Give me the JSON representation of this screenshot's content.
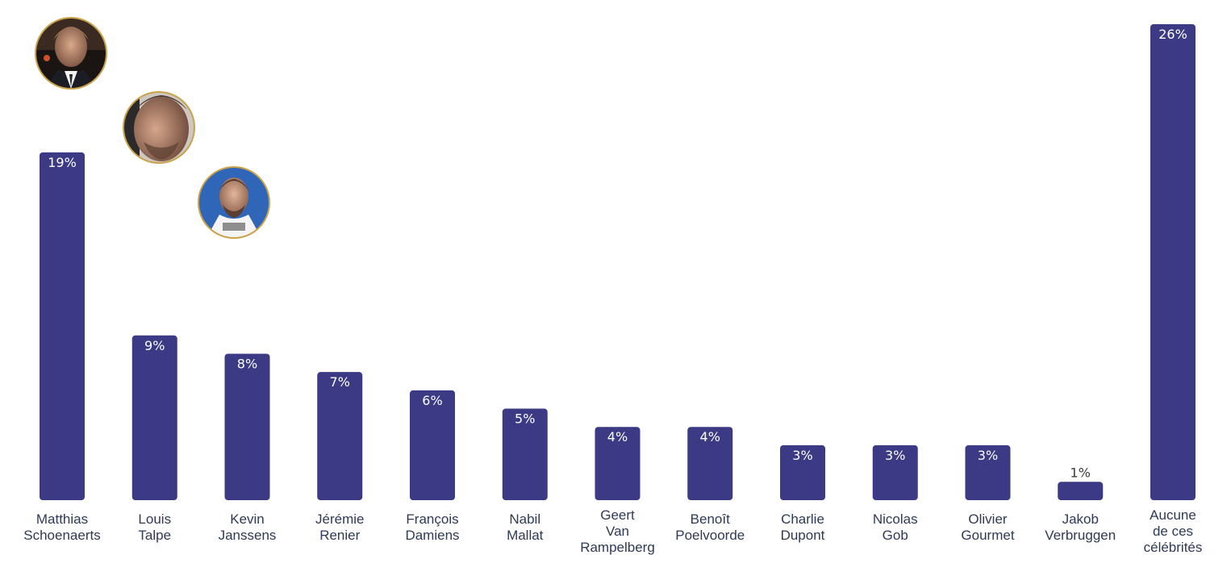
{
  "chart_data": {
    "type": "bar",
    "title": "",
    "xlabel": "",
    "ylabel": "",
    "ylim": [
      0,
      26
    ],
    "grid": false,
    "bar_color": "#3c3a85",
    "categories": [
      [
        "Matthias",
        "Schoenaerts"
      ],
      [
        "Louis",
        "Talpe"
      ],
      [
        "Kevin",
        "Janssens"
      ],
      [
        "Jérémie",
        "Renier"
      ],
      [
        "François",
        "Damiens"
      ],
      [
        "Nabil",
        "Mallat"
      ],
      [
        "Geert",
        "Van",
        "Rampelberg"
      ],
      [
        "Benoît",
        "Poelvoorde"
      ],
      [
        "Charlie",
        "Dupont"
      ],
      [
        "Nicolas",
        "Gob"
      ],
      [
        "Olivier",
        "Gourmet"
      ],
      [
        "Jakob",
        "Verbruggen"
      ],
      [
        "Aucune",
        "de ces",
        "célébrités"
      ]
    ],
    "values": [
      19,
      9,
      8,
      7,
      6,
      5,
      4,
      4,
      3,
      3,
      3,
      1,
      26
    ],
    "value_labels": [
      "19%",
      "9%",
      "8%",
      "7%",
      "6%",
      "5%",
      "4%",
      "4%",
      "3%",
      "3%",
      "3%",
      "1%",
      "26%"
    ],
    "photos": [
      {
        "person": "Matthias Schoenaerts",
        "icon": "portrait-photo"
      },
      {
        "person": "Louis Talpe",
        "icon": "portrait-photo"
      },
      {
        "person": "Kevin Janssens",
        "icon": "portrait-photo"
      }
    ]
  }
}
